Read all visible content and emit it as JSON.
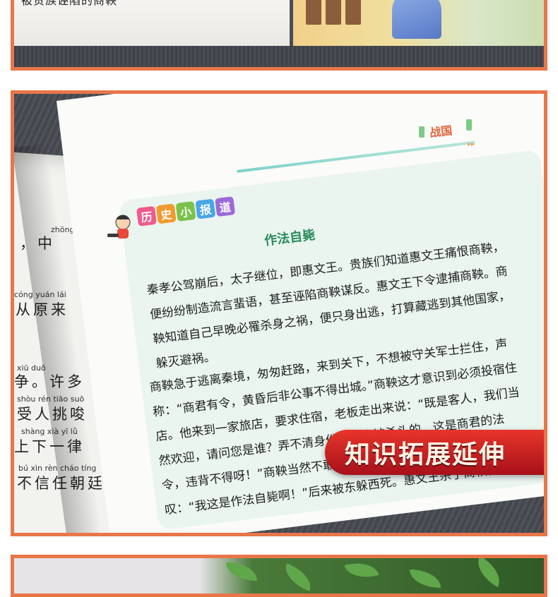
{
  "top_panel": {
    "caption_fragment": "被贵族诬陷的商鞅"
  },
  "main_panel": {
    "left_page": {
      "lines": [
        {
          "pinyin": "zhōng",
          "text": "，中"
        },
        {
          "pinyin": "cóng yuán lái",
          "text": "从原来"
        },
        {
          "pinyin": "xiū duō",
          "text": "争。许多"
        },
        {
          "pinyin": "shòu rén tiāo suō",
          "text": "受人挑唆"
        },
        {
          "pinyin": "shàng xià yī lǜ",
          "text": "上下一律"
        },
        {
          "pinyin": "bú xìn rèn cháo tíng",
          "text": "不信任朝廷"
        }
      ]
    },
    "right_page": {
      "section_label": "战国",
      "column_badges": [
        "历",
        "史",
        "小",
        "报",
        "道"
      ],
      "badge_colors": [
        "#f05a8c",
        "#f39a2e",
        "#7bc24a",
        "#4aa6e8",
        "#9b6ad8"
      ],
      "story_title": "作法自毙",
      "paragraphs": [
        "秦孝公驾崩后，太子继位，即惠文王。贵族们知道惠文王痛恨商鞅，便纷纷制造流言蜚语，甚至诬陷商鞅谋反。惠文王下令逮捕商鞅。商鞅知道自己早晚必罹杀身之祸，便只身出逃，打算藏逃到其他国家，躲灭避祸。",
        "商鞅急于逃离秦境，匆匆赶路，来到关下，不想被守关军士拦住，声称：“商君有令，黄昏后非公事不得出城。”商鞅这才意识到必须投宿住店。他来到一家旅店，要求住宿，老板走出来说：“既是客人，我们当然欢迎，请问您是谁？弄不清身份，我会被杀头的。这是商君的法令，违背不得呀！”商鞅当然不敢承认自己的身份，走出旅店，仰天长叹：“我这是作法自毙啊！”后来被东躲西死。惠文王杀了商鞅，却继续执行商鞅的政策，为秦统一六国奠定了经济与军事基础。"
      ]
    },
    "banner_text": "知识拓展延伸"
  }
}
